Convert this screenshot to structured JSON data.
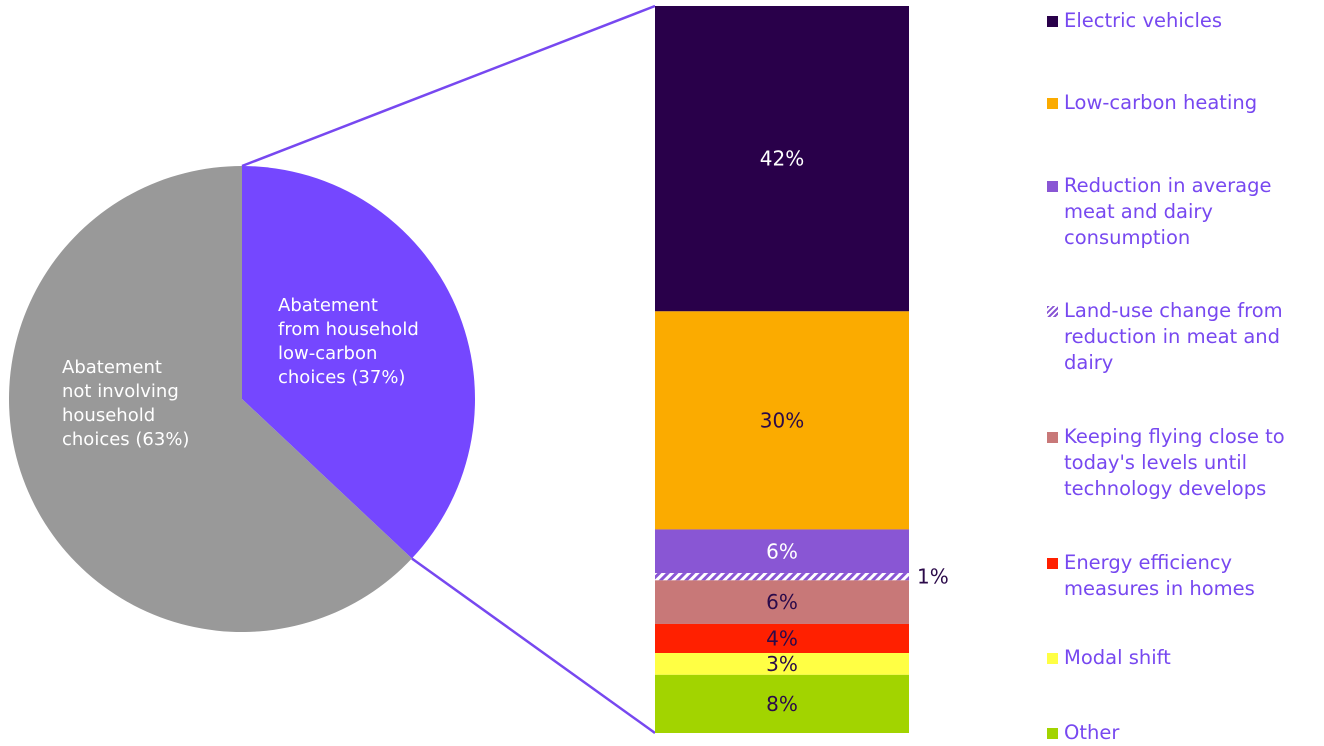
{
  "chart_data": [
    {
      "type": "pie",
      "slices": [
        {
          "label": "Abatement from household low-carbon choices (37%)",
          "value": 37,
          "color": "#7547ff"
        },
        {
          "label": "Abatement not involving household choices (63%)",
          "value": 63,
          "color": "#999999"
        }
      ]
    },
    {
      "type": "bar",
      "stacked": true,
      "segments": [
        {
          "name": "Electric vehicles",
          "value": 42,
          "label": "42%",
          "color": "#29004a",
          "text_color": "#ffffff"
        },
        {
          "name": "Low-carbon heating",
          "value": 30,
          "label": "30%",
          "color": "#fbab00",
          "text_color": "#2b0a4a"
        },
        {
          "name": "Reduction in average meat and dairy consumption",
          "value": 6,
          "label": "6%",
          "color": "#8956d4",
          "text_color": "#ffffff"
        },
        {
          "name": "Land-use change from reduction in meat and dairy",
          "value": 1,
          "label": "1%",
          "color": "#8956d4",
          "pattern": "hatched",
          "text_color": "#2b0a4a"
        },
        {
          "name": "Keeping flying close to today's levels until technology develops",
          "value": 6,
          "label": "6%",
          "color": "#c87878",
          "text_color": "#2b0a4a"
        },
        {
          "name": "Energy efficiency measures in homes",
          "value": 4,
          "label": "4%",
          "color": "#ff2000",
          "text_color": "#2b0a4a"
        },
        {
          "name": "Modal shift",
          "value": 3,
          "label": "3%",
          "color": "#ffff44",
          "text_color": "#2b0a4a"
        },
        {
          "name": "Other",
          "value": 8,
          "label": "8%",
          "color": "#a2d400",
          "text_color": "#2b0a4a"
        }
      ]
    }
  ],
  "legend": {
    "items": [
      {
        "label": "Electric vehicles",
        "color": "#29004a"
      },
      {
        "label": "Low-carbon heating",
        "color": "#fbab00"
      },
      {
        "label": "Reduction in average meat and dairy consumption",
        "color": "#8956d4"
      },
      {
        "label": "Land-use change from reduction in meat and dairy",
        "color": "#8956d4",
        "pattern": "hatched"
      },
      {
        "label": "Keeping flying close to today's levels until technology develops",
        "color": "#c87878"
      },
      {
        "label": "Energy efficiency measures in homes",
        "color": "#ff2000"
      },
      {
        "label": "Modal shift",
        "color": "#ffff44"
      },
      {
        "label": "Other",
        "color": "#a2d400"
      }
    ]
  },
  "connector_color": "#7748f0"
}
